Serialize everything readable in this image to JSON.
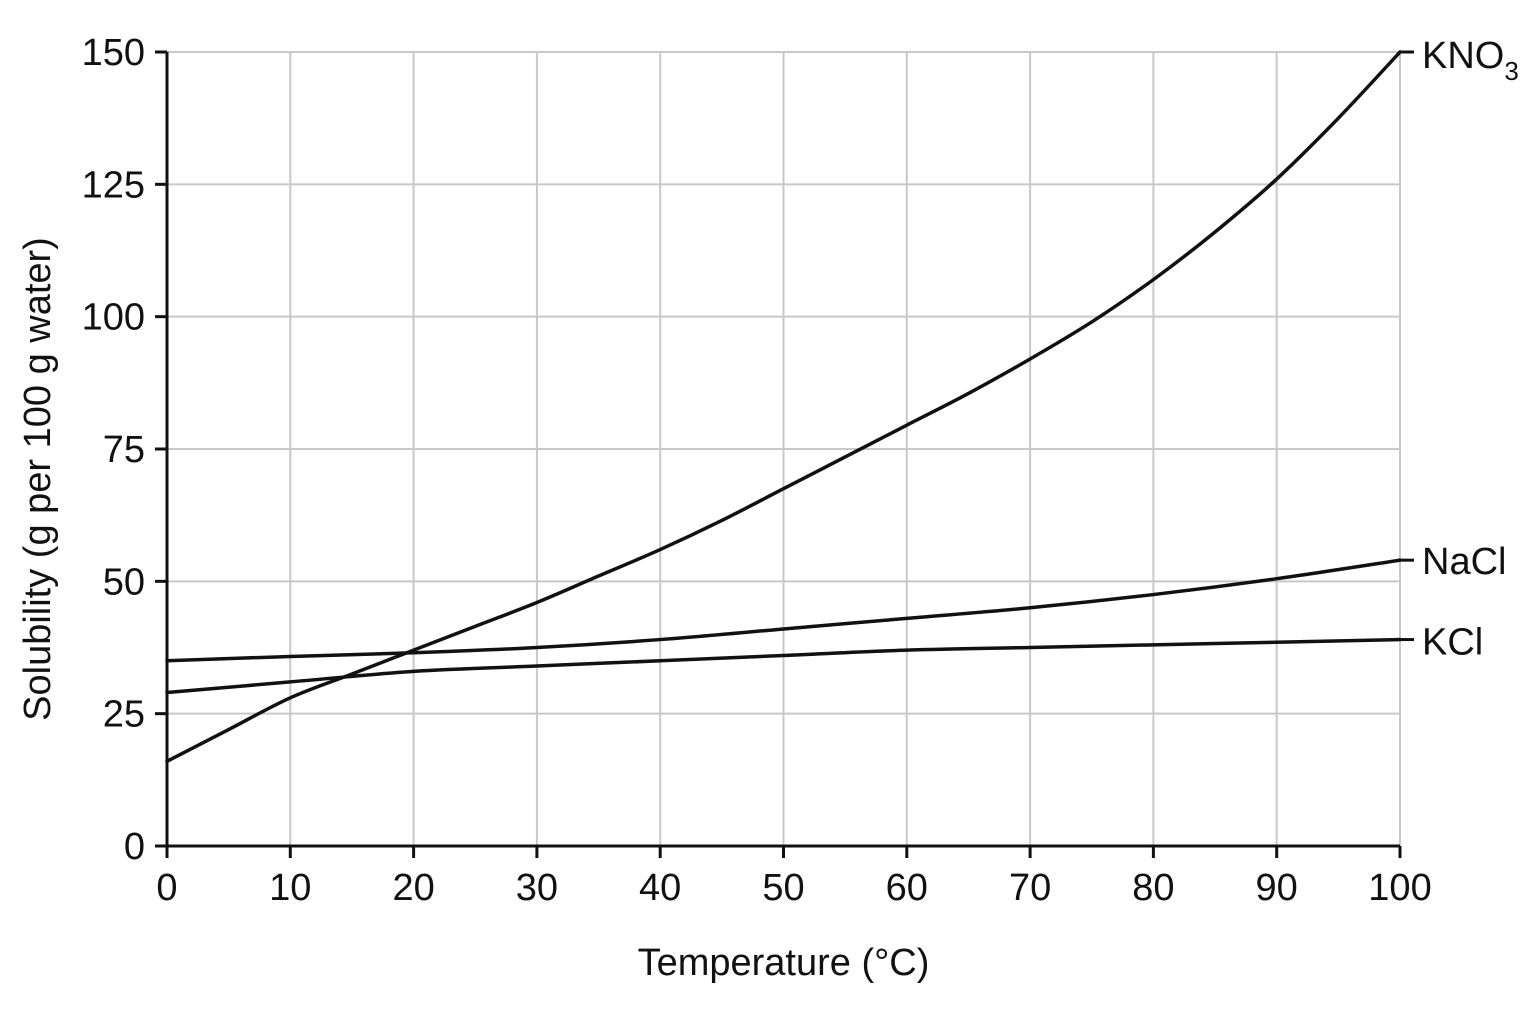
{
  "chart_data": {
    "type": "line",
    "title": "",
    "xlabel": "Temperature (°C)",
    "ylabel": "Solubility (g per 100 g water)",
    "xlim": [
      0,
      100
    ],
    "ylim": [
      0,
      150
    ],
    "x_ticks": [
      0,
      10,
      20,
      30,
      40,
      50,
      60,
      70,
      80,
      90,
      100
    ],
    "y_ticks": [
      0,
      25,
      50,
      75,
      100,
      125,
      150
    ],
    "grid": true,
    "legend": "inline labels at right end of each line",
    "series": [
      {
        "name": "KNO3",
        "label_main": "KNO",
        "label_sub": "3",
        "x": [
          0,
          5,
          10,
          15,
          20,
          25,
          30,
          35,
          40,
          45,
          50,
          55,
          60,
          65,
          70,
          75,
          80,
          85,
          90,
          95,
          100
        ],
        "y": [
          16,
          22,
          28,
          32.5,
          37,
          41.5,
          46,
          51,
          56,
          61.5,
          67.5,
          73.5,
          79.5,
          85.5,
          92,
          99,
          107,
          116,
          126,
          137.5,
          150
        ]
      },
      {
        "name": "KCl",
        "label_main": "KCl",
        "x": [
          0,
          10,
          20,
          30,
          40,
          50,
          60,
          70,
          80,
          90,
          100
        ],
        "y": [
          29,
          31,
          33,
          34,
          35,
          36,
          37,
          37.5,
          38,
          38.5,
          39
        ]
      },
      {
        "name": "NaCl",
        "label_main": "NaCl",
        "x": [
          0,
          10,
          20,
          30,
          40,
          50,
          60,
          70,
          80,
          90,
          100
        ],
        "y": [
          35,
          35.8,
          36.5,
          37.5,
          39,
          41,
          43,
          45,
          47.5,
          50.5,
          54
        ]
      }
    ]
  }
}
